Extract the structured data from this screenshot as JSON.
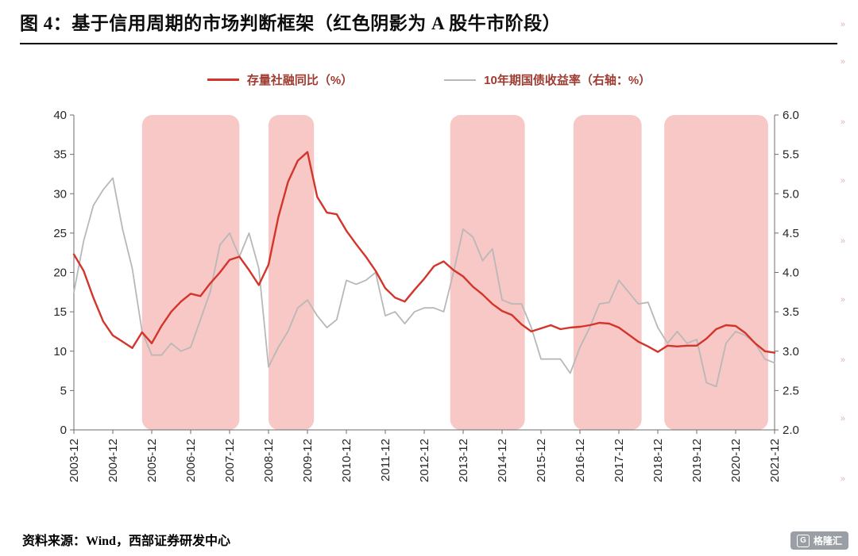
{
  "title": "图 4：基于信用周期的市场判断框架（红色阴影为 A 股牛市阶段）",
  "legend": [
    {
      "label": "存量社融同比（%）",
      "color": "#d3342b"
    },
    {
      "label": "10年期国债收益率（右轴：%）",
      "color": "#b8b8b8"
    }
  ],
  "legend_text_color": "#9e3a2f",
  "source_note": "资料来源：Wind，西部证券研发中心",
  "watermark": {
    "badge_letter": "G",
    "badge_text": "格隆汇",
    "edge_mark_glyph": "»"
  },
  "chart_data": {
    "type": "line",
    "title": "基于信用周期的市场判断框架",
    "grid": false,
    "legend_position": "top",
    "x_unit": "year-month",
    "x": [
      "2003-12",
      "2004-03",
      "2004-06",
      "2004-09",
      "2004-12",
      "2005-03",
      "2005-06",
      "2005-09",
      "2005-12",
      "2006-03",
      "2006-06",
      "2006-09",
      "2006-12",
      "2007-03",
      "2007-06",
      "2007-09",
      "2007-12",
      "2008-03",
      "2008-06",
      "2008-09",
      "2008-12",
      "2009-03",
      "2009-06",
      "2009-09",
      "2009-12",
      "2010-03",
      "2010-06",
      "2010-09",
      "2010-12",
      "2011-03",
      "2011-06",
      "2011-09",
      "2011-12",
      "2012-03",
      "2012-06",
      "2012-09",
      "2012-12",
      "2013-03",
      "2013-06",
      "2013-09",
      "2013-12",
      "2014-03",
      "2014-06",
      "2014-09",
      "2014-12",
      "2015-03",
      "2015-06",
      "2015-09",
      "2015-12",
      "2016-03",
      "2016-06",
      "2016-09",
      "2016-12",
      "2017-03",
      "2017-06",
      "2017-09",
      "2017-12",
      "2018-03",
      "2018-06",
      "2018-09",
      "2018-12",
      "2019-03",
      "2019-06",
      "2019-09",
      "2019-12",
      "2020-03",
      "2020-06",
      "2020-09",
      "2020-12",
      "2021-03",
      "2021-06",
      "2021-09",
      "2021-12"
    ],
    "series": [
      {
        "name": "存量社融同比（%）",
        "axis": "left",
        "color": "#d3342b",
        "values": [
          22.3,
          20.2,
          16.8,
          13.8,
          12.0,
          11.2,
          10.4,
          12.4,
          11.0,
          13.2,
          15.0,
          16.3,
          17.3,
          17.0,
          18.6,
          20.0,
          21.6,
          22.0,
          20.3,
          18.4,
          21.0,
          27.0,
          31.5,
          34.2,
          35.3,
          29.6,
          27.6,
          27.4,
          25.3,
          23.6,
          22.0,
          20.2,
          18.0,
          16.8,
          16.3,
          17.8,
          19.2,
          20.8,
          21.4,
          20.3,
          19.5,
          18.2,
          17.2,
          16.0,
          15.1,
          14.6,
          13.4,
          12.5,
          12.9,
          13.3,
          12.8,
          13.0,
          13.1,
          13.3,
          13.6,
          13.5,
          13.0,
          12.1,
          11.2,
          10.6,
          9.9,
          10.7,
          10.6,
          10.7,
          10.7,
          11.6,
          12.8,
          13.3,
          13.2,
          12.3,
          11.0,
          10.0,
          9.8
        ]
      },
      {
        "name": "10年期国债收益率（右轴：%）",
        "axis": "right",
        "color": "#b8b8b8",
        "values": [
          3.75,
          4.4,
          4.85,
          5.05,
          5.2,
          4.55,
          4.05,
          3.25,
          2.95,
          2.95,
          3.1,
          3.0,
          3.05,
          3.4,
          3.75,
          4.35,
          4.5,
          4.2,
          4.5,
          4.05,
          2.8,
          3.05,
          3.25,
          3.55,
          3.65,
          3.45,
          3.3,
          3.4,
          3.9,
          3.85,
          3.9,
          4.0,
          3.45,
          3.5,
          3.35,
          3.5,
          3.55,
          3.55,
          3.5,
          4.0,
          4.55,
          4.45,
          4.15,
          4.3,
          3.65,
          3.6,
          3.6,
          3.3,
          2.9,
          2.9,
          2.9,
          2.72,
          3.05,
          3.3,
          3.6,
          3.62,
          3.9,
          3.75,
          3.6,
          3.62,
          3.3,
          3.1,
          3.25,
          3.1,
          3.15,
          2.6,
          2.55,
          3.1,
          3.25,
          3.2,
          3.1,
          2.9,
          2.85
        ]
      }
    ],
    "left_axis": {
      "min": 0,
      "max": 40,
      "ticks": [
        0,
        5,
        10,
        15,
        20,
        25,
        30,
        35,
        40
      ]
    },
    "right_axis": {
      "min": 2.0,
      "max": 6.0,
      "ticks": [
        "2.0",
        "2.5",
        "3.0",
        "3.5",
        "4.0",
        "4.5",
        "5.0",
        "5.5",
        "6.0"
      ]
    },
    "x_ticks": [
      "2003-12",
      "2004-12",
      "2005-12",
      "2006-12",
      "2007-12",
      "2008-12",
      "2009-12",
      "2010-12",
      "2011-12",
      "2012-12",
      "2013-12",
      "2014-12",
      "2015-12",
      "2016-12",
      "2017-12",
      "2018-12",
      "2019-12",
      "2020-12",
      "2021-12"
    ],
    "shaded_regions": {
      "label": "A股牛市阶段",
      "color": "#f7c8c5",
      "spans": [
        {
          "start": "2005-09",
          "end": "2008-03"
        },
        {
          "start": "2008-12",
          "end": "2010-02"
        },
        {
          "start": "2013-08",
          "end": "2015-07"
        },
        {
          "start": "2016-10",
          "end": "2018-07"
        },
        {
          "start": "2019-02",
          "end": "2021-10"
        }
      ]
    }
  }
}
